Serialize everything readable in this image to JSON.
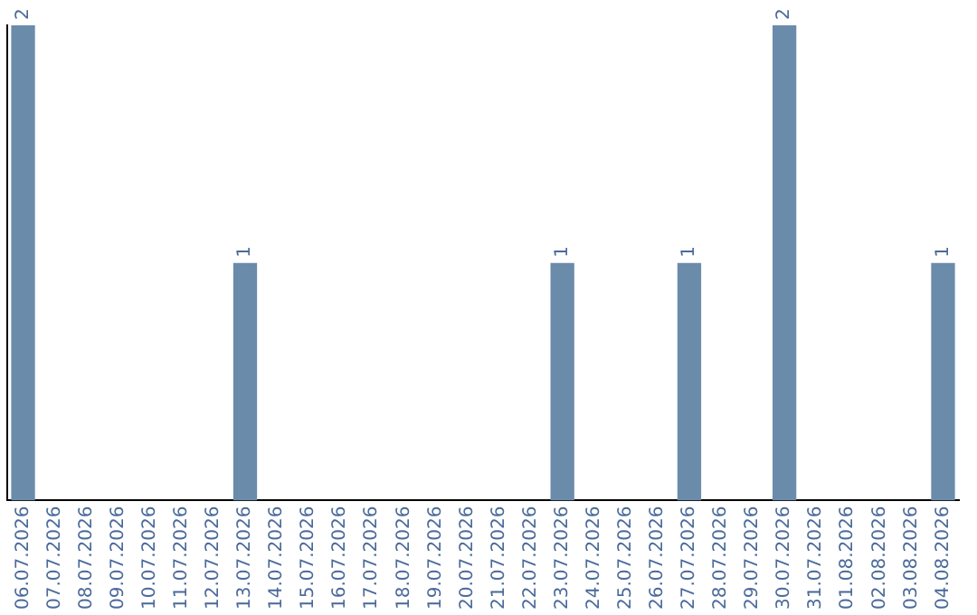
{
  "chart_data": {
    "type": "bar",
    "categories": [
      "06.07.2026",
      "07.07.2026",
      "08.07.2026",
      "09.07.2026",
      "10.07.2026",
      "11.07.2026",
      "12.07.2026",
      "13.07.2026",
      "14.07.2026",
      "15.07.2026",
      "16.07.2026",
      "17.07.2026",
      "18.07.2026",
      "19.07.2026",
      "20.07.2026",
      "21.07.2026",
      "22.07.2026",
      "23.07.2026",
      "24.07.2026",
      "25.07.2026",
      "26.07.2026",
      "27.07.2026",
      "28.07.2026",
      "29.07.2026",
      "30.07.2026",
      "31.07.2026",
      "01.08.2026",
      "02.08.2026",
      "03.08.2026",
      "04.08.2026"
    ],
    "values": [
      2,
      0,
      0,
      0,
      0,
      0,
      0,
      1,
      0,
      0,
      0,
      0,
      0,
      0,
      0,
      0,
      0,
      1,
      0,
      0,
      0,
      1,
      0,
      0,
      2,
      0,
      0,
      0,
      0,
      1
    ],
    "value_labels": [
      "2",
      null,
      null,
      null,
      null,
      null,
      null,
      "1",
      null,
      null,
      null,
      null,
      null,
      null,
      null,
      null,
      null,
      "1",
      null,
      null,
      null,
      "1",
      null,
      null,
      "2",
      null,
      null,
      null,
      null,
      "1"
    ],
    "color": "#6b8bab",
    "grid": false,
    "legend": false,
    "tick_labels": "x"
  }
}
